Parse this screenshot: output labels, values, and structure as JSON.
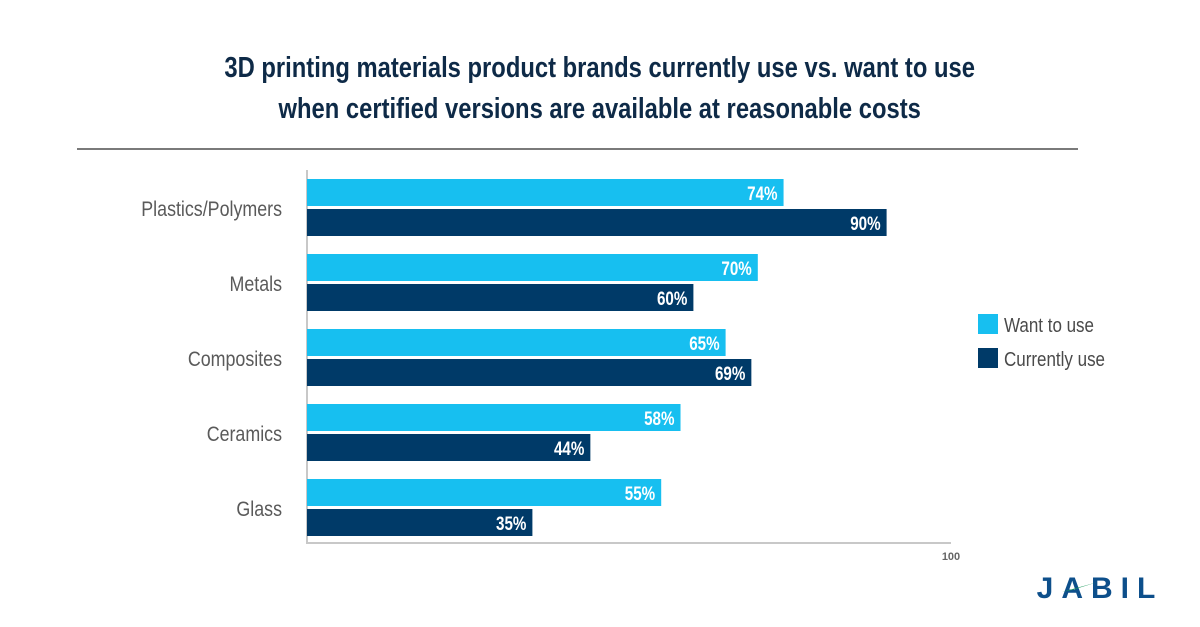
{
  "title_lines": [
    "3D printing materials product brands currently use vs. want to use",
    "when certified versions are available at reasonable costs"
  ],
  "logo_text": "JABIL",
  "chart_data": {
    "type": "bar",
    "orientation": "horizontal",
    "title": "3D printing materials product brands currently use vs. want to use when certified versions are available at reasonable costs",
    "categories": [
      "Plastics/Polymers",
      "Metals",
      "Composites",
      "Ceramics",
      "Glass"
    ],
    "series": [
      {
        "name": "Want to use",
        "color": "#17bff0",
        "values": [
          74,
          70,
          65,
          58,
          55
        ]
      },
      {
        "name": "Currently use",
        "color": "#003a68",
        "values": [
          90,
          60,
          69,
          44,
          35
        ]
      }
    ],
    "xlim": [
      0,
      100
    ],
    "x_ticks": [
      "100"
    ],
    "value_suffix": "%",
    "legend_position": "right",
    "grid": false
  }
}
